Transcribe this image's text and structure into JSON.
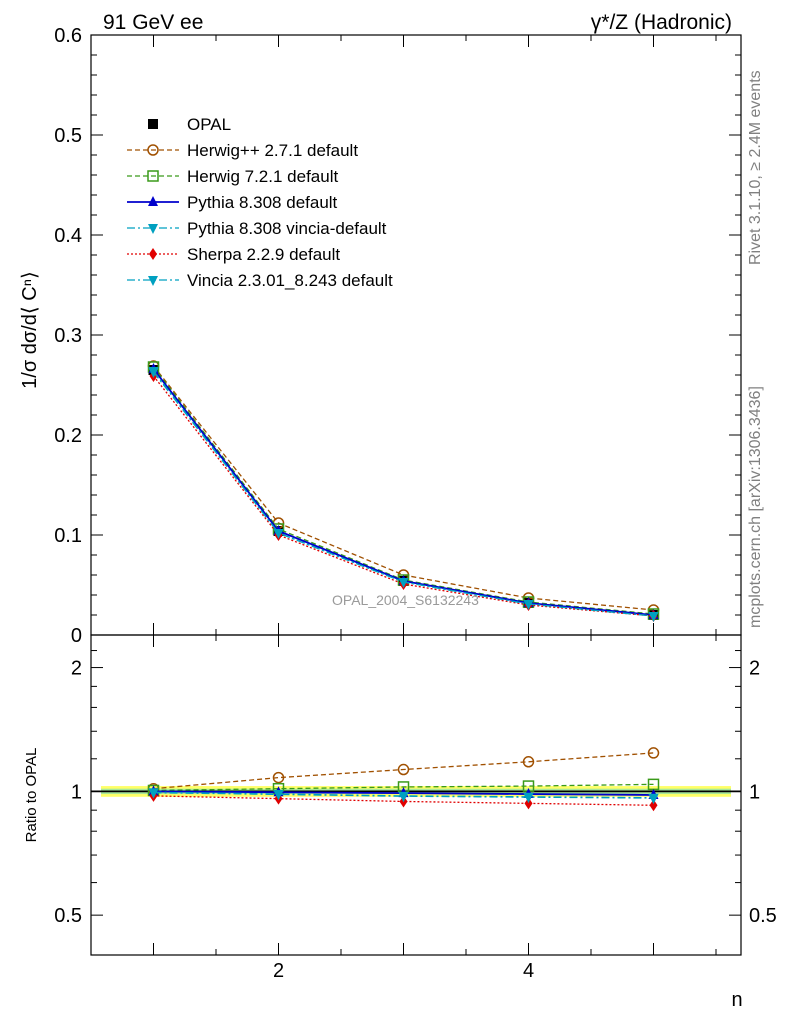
{
  "header": {
    "left": "91 GeV ee",
    "right": "γ*/Z (Hadronic)"
  },
  "side_labels": {
    "rivet": "Rivet 3.1.10, ≥ 2.4M events",
    "mcplots": "mcplots.cern.ch [arXiv:1306.3436]"
  },
  "watermark": "OPAL_2004_S6132243",
  "chart_data": [
    {
      "type": "line",
      "panel": "main",
      "ylabel": "1/σ dσ/d⟨ Cⁿ⟩",
      "xlabel": "n",
      "xlim": [
        0.5,
        5.7
      ],
      "ylim": [
        0,
        0.6
      ],
      "yticks": [
        0,
        0.1,
        0.2,
        0.3,
        0.4,
        0.5,
        0.6
      ],
      "ytick_labels": [
        "0",
        "0.1",
        "0.2",
        "0.3",
        "0.4",
        "0.5",
        "0.6"
      ],
      "x": [
        1,
        2,
        3,
        4,
        5
      ],
      "legend_position": "top-left",
      "series": [
        {
          "name": "OPAL",
          "values": [
            0.265,
            0.104,
            0.054,
            0.032,
            0.02
          ],
          "color": "#000000",
          "marker": "square-filled",
          "dash": "none",
          "line": false
        },
        {
          "name": "Herwig++ 2.7.1 default",
          "values": [
            0.269,
            0.112,
            0.06,
            0.037,
            0.025
          ],
          "color": "#a05000",
          "marker": "circle-open",
          "dash": "5,3"
        },
        {
          "name": "Herwig 7.2.1 default",
          "values": [
            0.268,
            0.106,
            0.055,
            0.033,
            0.021
          ],
          "color": "#3a9a1a",
          "marker": "square-open",
          "dash": "5,3"
        },
        {
          "name": "Pythia 8.308 default",
          "values": [
            0.266,
            0.104,
            0.054,
            0.032,
            0.02
          ],
          "color": "#0000cc",
          "marker": "triangle-up",
          "dash": "none"
        },
        {
          "name": "Pythia 8.308 vincia-default",
          "values": [
            0.264,
            0.102,
            0.053,
            0.031,
            0.019
          ],
          "color": "#00a0c0",
          "marker": "triangle-down",
          "dash": "8,3,2,3"
        },
        {
          "name": "Sherpa 2.2.9 default",
          "values": [
            0.259,
            0.1,
            0.051,
            0.03,
            0.019
          ],
          "color": "#e00000",
          "marker": "diamond",
          "dash": "2,2"
        },
        {
          "name": "Vincia 2.3.01_8.243 default",
          "values": [
            0.263,
            0.102,
            0.053,
            0.031,
            0.019
          ],
          "color": "#00a0c0",
          "marker": "triangle-down",
          "dash": "8,3,2,3"
        }
      ]
    },
    {
      "type": "line",
      "panel": "ratio",
      "ylabel": "Ratio to OPAL",
      "xlabel": "n",
      "scale": "log",
      "xlim": [
        0.5,
        5.7
      ],
      "ylim": [
        0.4,
        2.4
      ],
      "yticks": [
        0.5,
        1,
        2
      ],
      "ytick_labels": [
        "0.5",
        "1",
        "2"
      ],
      "xticks": [
        2,
        4
      ],
      "xtick_labels": [
        "2",
        "4"
      ],
      "x": [
        1,
        2,
        3,
        4,
        5
      ],
      "series": [
        {
          "name": "Herwig++ 2.7.1 default",
          "values": [
            1.015,
            1.08,
            1.13,
            1.18,
            1.24
          ],
          "color": "#a05000",
          "marker": "circle-open",
          "dash": "5,3"
        },
        {
          "name": "Herwig 7.2.1 default",
          "values": [
            1.005,
            1.015,
            1.025,
            1.03,
            1.04
          ],
          "color": "#3a9a1a",
          "marker": "square-open",
          "dash": "5,3"
        },
        {
          "name": "Pythia 8.308 default",
          "values": [
            1.0,
            0.995,
            0.99,
            0.985,
            0.98
          ],
          "color": "#0000cc",
          "marker": "triangle-up",
          "dash": "none"
        },
        {
          "name": "Pythia 8.308 vincia-default",
          "values": [
            0.995,
            0.985,
            0.975,
            0.97,
            0.965
          ],
          "color": "#00a0c0",
          "marker": "triangle-down",
          "dash": "8,3,2,3"
        },
        {
          "name": "Sherpa 2.2.9 default",
          "values": [
            0.975,
            0.96,
            0.945,
            0.935,
            0.925
          ],
          "color": "#e00000",
          "marker": "diamond",
          "dash": "2,2"
        },
        {
          "name": "Vincia 2.3.01_8.243 default",
          "values": [
            0.993,
            0.983,
            0.973,
            0.968,
            0.963
          ],
          "color": "#00a0c0",
          "marker": "triangle-down",
          "dash": "8,3,2,3"
        }
      ],
      "band": {
        "lower": 0.97,
        "upper": 1.03,
        "color": "#ffff66"
      },
      "band_inner": {
        "lower": 0.985,
        "upper": 1.015,
        "color": "#a8e89a"
      }
    }
  ]
}
